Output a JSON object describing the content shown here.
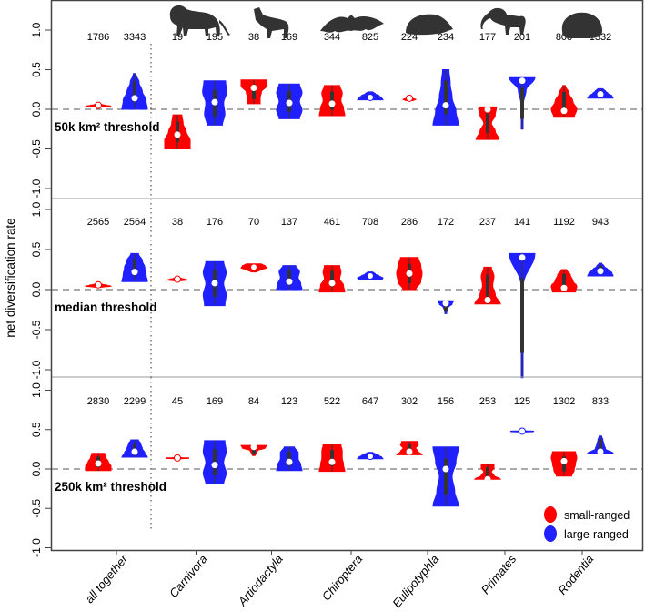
{
  "chart_data": {
    "type": "violin",
    "ylabel": "net diversification rate",
    "yticks": [
      "-1.0",
      "-0.5",
      "0.0",
      "0.5",
      "1.0"
    ],
    "ylim": [
      -1.1,
      1.35
    ],
    "categories": [
      "all together",
      "Carnivora",
      "Artiodactyla",
      "Chiroptera",
      "Eulipotyphla",
      "Primates",
      "Rodentia"
    ],
    "icons": [
      "",
      "lion-silhouette-icon",
      "goat-silhouette-icon",
      "bat-silhouette-icon",
      "mole-silhouette-icon",
      "primate-silhouette-icon",
      "beaver-silhouette-icon"
    ],
    "colors": {
      "small": "#ff0000",
      "large": "#2020ff"
    },
    "legend": {
      "position": "bottom-right",
      "entries": [
        "small-ranged",
        "large-ranged"
      ]
    },
    "panels": [
      {
        "label": "50k km² threshold",
        "small": [
          {
            "n": "1786",
            "min": 0.03,
            "max": 0.07,
            "median": 0.05,
            "profile": [
              0.2,
              1,
              0.6,
              0.3,
              0.1
            ]
          },
          {
            "n": "19",
            "min": -0.5,
            "max": -0.07,
            "median": -0.32,
            "profile": [
              1,
              1,
              0.7,
              0.45,
              0.35
            ]
          },
          {
            "n": "38",
            "min": 0.07,
            "max": 0.37,
            "median": 0.27,
            "profile": [
              0.5,
              0.5,
              0.6,
              1,
              1
            ]
          },
          {
            "n": "344",
            "min": -0.08,
            "max": 0.3,
            "median": 0.07,
            "profile": [
              1,
              0.9,
              0.7,
              0.8,
              0.6
            ]
          },
          {
            "n": "224",
            "min": 0.11,
            "max": 0.17,
            "median": 0.14,
            "profile": [
              0.3,
              0.5,
              0.2,
              0.2,
              0.1
            ]
          },
          {
            "n": "177",
            "min": -0.38,
            "max": 0.03,
            "median": 0.0,
            "profile": [
              0.9,
              0.6,
              0.3,
              0.6,
              0.7
            ]
          },
          {
            "n": "803",
            "min": -0.1,
            "max": 0.3,
            "median": -0.02,
            "profile": [
              0.8,
              1,
              0.7,
              0.4,
              0.1
            ]
          }
        ],
        "large": [
          {
            "n": "3343",
            "min": 0.0,
            "max": 0.45,
            "median": 0.14,
            "profile": [
              1,
              0.9,
              0.6,
              0.35,
              0.1
            ]
          },
          {
            "n": "195",
            "min": -0.2,
            "max": 0.36,
            "median": 0.09,
            "profile": [
              0.6,
              0.8,
              0.7,
              0.95,
              0.85
            ]
          },
          {
            "n": "169",
            "min": -0.12,
            "max": 0.32,
            "median": 0.08,
            "profile": [
              0.8,
              1,
              0.8,
              1,
              0.8
            ]
          },
          {
            "n": "825",
            "min": 0.12,
            "max": 0.22,
            "median": 0.15,
            "profile": [
              1,
              0.9,
              0.7,
              0.4,
              0.2
            ]
          },
          {
            "n": "234",
            "min": -0.2,
            "max": 0.5,
            "median": 0.05,
            "profile": [
              1,
              0.8,
              0.5,
              0.35,
              0.25
            ]
          },
          {
            "n": "201",
            "min": -0.25,
            "max": 0.4,
            "median": 0.36,
            "profile": [
              0.05,
              0.05,
              0.1,
              0.3,
              1
            ]
          },
          {
            "n": "1332",
            "min": 0.14,
            "max": 0.26,
            "median": 0.19,
            "profile": [
              1,
              0.9,
              0.6,
              0.4,
              0.2
            ]
          }
        ]
      },
      {
        "label": "median threshold",
        "small": [
          {
            "n": "2565",
            "min": 0.03,
            "max": 0.08,
            "median": 0.06,
            "profile": [
              0.3,
              1,
              0.7,
              0.3,
              0.1
            ]
          },
          {
            "n": "38",
            "min": 0.11,
            "max": 0.15,
            "median": 0.13,
            "profile": [
              0.3,
              0.8,
              0.6,
              0.3,
              0.1
            ]
          },
          {
            "n": "70",
            "min": 0.22,
            "max": 0.32,
            "median": 0.28,
            "profile": [
              0.2,
              0.5,
              1,
              0.9,
              0.6
            ]
          },
          {
            "n": "461",
            "min": -0.03,
            "max": 0.3,
            "median": 0.08,
            "profile": [
              1,
              0.9,
              0.6,
              0.7,
              0.6
            ]
          },
          {
            "n": "286",
            "min": 0.0,
            "max": 0.4,
            "median": 0.2,
            "profile": [
              0.5,
              0.9,
              1,
              0.9,
              0.7
            ]
          },
          {
            "n": "237",
            "min": -0.18,
            "max": 0.28,
            "median": -0.13,
            "profile": [
              1,
              0.6,
              0.4,
              0.5,
              0.3
            ]
          },
          {
            "n": "1192",
            "min": -0.03,
            "max": 0.25,
            "median": 0.02,
            "profile": [
              0.9,
              1,
              0.7,
              0.5,
              0.2
            ]
          }
        ],
        "large": [
          {
            "n": "2564",
            "min": 0.1,
            "max": 0.45,
            "median": 0.22,
            "profile": [
              1,
              0.9,
              0.8,
              0.6,
              0.3
            ]
          },
          {
            "n": "176",
            "min": -0.2,
            "max": 0.35,
            "median": 0.08,
            "profile": [
              0.8,
              0.9,
              0.7,
              0.9,
              0.7
            ]
          },
          {
            "n": "137",
            "min": 0.0,
            "max": 0.3,
            "median": 0.1,
            "profile": [
              1,
              0.9,
              0.7,
              0.8,
              0.5
            ]
          },
          {
            "n": "708",
            "min": 0.12,
            "max": 0.22,
            "median": 0.17,
            "profile": [
              0.9,
              1,
              0.7,
              0.4,
              0.2
            ]
          },
          {
            "n": "172",
            "min": -0.3,
            "max": -0.14,
            "median": -0.17,
            "profile": [
              0.05,
              0.1,
              0.2,
              0.5,
              0.6
            ]
          },
          {
            "n": "141",
            "min": -1.1,
            "max": 0.45,
            "median": 0.4,
            "profile": [
              0.02,
              0.03,
              0.05,
              0.1,
              1
            ]
          },
          {
            "n": "943",
            "min": 0.17,
            "max": 0.33,
            "median": 0.23,
            "profile": [
              1,
              0.9,
              0.6,
              0.3,
              0.1
            ]
          }
        ]
      },
      {
        "label": "250k km² threshold",
        "small": [
          {
            "n": "2830",
            "min": -0.02,
            "max": 0.2,
            "median": 0.07,
            "profile": [
              1,
              1,
              0.8,
              0.6,
              0.5
            ]
          },
          {
            "n": "45",
            "min": 0.13,
            "max": 0.15,
            "median": 0.14,
            "profile": [
              0.2,
              0.9,
              0.9,
              0.2,
              0.1
            ]
          },
          {
            "n": "84",
            "min": 0.17,
            "max": 0.3,
            "median": 0.28,
            "profile": [
              0.1,
              0.2,
              0.3,
              0.9,
              1
            ]
          },
          {
            "n": "522",
            "min": -0.03,
            "max": 0.31,
            "median": 0.09,
            "profile": [
              1,
              0.9,
              0.8,
              0.8,
              0.7
            ]
          },
          {
            "n": "302",
            "min": 0.18,
            "max": 0.35,
            "median": 0.22,
            "profile": [
              1,
              0.7,
              0.5,
              0.7,
              0.6
            ]
          },
          {
            "n": "253",
            "min": -0.13,
            "max": 0.06,
            "median": -0.13,
            "profile": [
              1,
              0.5,
              0.3,
              0.5,
              0.5
            ]
          },
          {
            "n": "1302",
            "min": -0.09,
            "max": 0.22,
            "median": 0.1,
            "profile": [
              0.6,
              0.8,
              0.9,
              1,
              0.9
            ]
          }
        ],
        "large": [
          {
            "n": "2299",
            "min": 0.15,
            "max": 0.37,
            "median": 0.22,
            "profile": [
              1,
              0.8,
              0.6,
              0.5,
              0.3
            ]
          },
          {
            "n": "169",
            "min": -0.19,
            "max": 0.36,
            "median": 0.05,
            "profile": [
              0.7,
              0.9,
              0.7,
              0.9,
              0.8
            ]
          },
          {
            "n": "123",
            "min": -0.02,
            "max": 0.28,
            "median": 0.09,
            "profile": [
              1,
              0.9,
              0.7,
              0.7,
              0.4
            ]
          },
          {
            "n": "647",
            "min": 0.13,
            "max": 0.21,
            "median": 0.16,
            "profile": [
              1,
              0.9,
              0.7,
              0.4,
              0.2
            ]
          },
          {
            "n": "156",
            "min": -0.47,
            "max": 0.28,
            "median": 0.0,
            "profile": [
              1,
              0.7,
              0.5,
              0.8,
              1
            ]
          },
          {
            "n": "125",
            "min": 0.47,
            "max": 0.49,
            "median": 0.48,
            "profile": [
              0.2,
              0.9,
              0.9,
              0.2,
              0.1
            ]
          },
          {
            "n": "833",
            "min": 0.2,
            "max": 0.42,
            "median": 0.22,
            "profile": [
              1,
              0.4,
              0.3,
              0.2,
              0.1
            ]
          }
        ]
      }
    ]
  }
}
